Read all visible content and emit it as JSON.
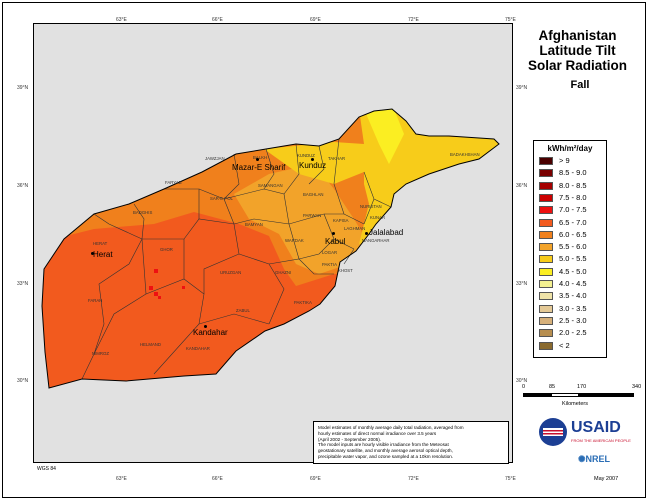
{
  "title_lines": [
    "Afghanistan",
    "Latitude Tilt",
    "Solar Radiation"
  ],
  "season": "Fall",
  "graticule": {
    "top_longitudes": [
      "63°E",
      "66°E",
      "69°E",
      "72°E",
      "75°E"
    ],
    "bottom_longitudes": [
      "63°E",
      "66°E",
      "69°E",
      "72°E",
      "75°E"
    ],
    "left_latitudes": [
      "39°N",
      "36°N",
      "33°N",
      "30°N"
    ],
    "right_latitudes": [
      "39°N",
      "36°N",
      "33°N",
      "30°N"
    ]
  },
  "legend": {
    "title": "kWh/m²/day",
    "items": [
      {
        "label": "> 9",
        "color": "#4a0000"
      },
      {
        "label": "8.5 - 9.0",
        "color": "#7a0000"
      },
      {
        "label": "8.0 - 8.5",
        "color": "#a50000"
      },
      {
        "label": "7.5 - 8.0",
        "color": "#cc0000"
      },
      {
        "label": "7.0 - 7.5",
        "color": "#ee1111"
      },
      {
        "label": "6.5 - 7.0",
        "color": "#f25a1e"
      },
      {
        "label": "6.0 - 6.5",
        "color": "#f0801c"
      },
      {
        "label": "5.5 - 6.0",
        "color": "#f2a32a"
      },
      {
        "label": "5.0 - 5.5",
        "color": "#f7cc1a"
      },
      {
        "label": "4.5 - 5.0",
        "color": "#fbee22"
      },
      {
        "label": "4.0 - 4.5",
        "color": "#f3f090"
      },
      {
        "label": "3.5 - 4.0",
        "color": "#efe3a8"
      },
      {
        "label": "3.0 - 3.5",
        "color": "#e4c996"
      },
      {
        "label": "2.5 - 3.0",
        "color": "#d6b07a"
      },
      {
        "label": "2.0 - 2.5",
        "color": "#b78e4f"
      },
      {
        "label": "< 2",
        "color": "#8a6a2e"
      }
    ]
  },
  "scale_bar": {
    "labels": [
      "0",
      "85",
      "170",
      "340"
    ],
    "units": "Kilometers"
  },
  "description_lines": [
    "Model estimates of monthly average daily total radiation, averaged from",
    "hourly estimates of direct normal irradiance over 3.5 years",
    "(April 2002 - September 2005).",
    "The model inputs are hourly visible irradiance from the Meteosat",
    "geostationary satellite, and monthly average aerosol optical depth,",
    "precipitable water vapor, and ozone sampled at a 10km resolution."
  ],
  "datum": "WGS 84",
  "logos": {
    "usaid": "USAID",
    "usaid_tagline": "FROM THE AMERICAN PEOPLE",
    "nrel": "NREL"
  },
  "date": "May 2007",
  "cities": [
    {
      "key": "mazar",
      "label": "Mazar-E Sharif"
    },
    {
      "key": "kunduz",
      "label": "Kunduz"
    },
    {
      "key": "herat",
      "label": "Herat"
    },
    {
      "key": "kabul",
      "label": "Kabul"
    },
    {
      "key": "jalalabad",
      "label": "Jalalabad"
    },
    {
      "key": "kandahar",
      "label": "Kandahar"
    }
  ],
  "provinces": [
    "JAWZJAN",
    "BALKH",
    "KUNDUZ",
    "TAKHAR",
    "BADAKHSHAN",
    "FARYAB",
    "SAMANGAN",
    "BAGHLAN",
    "SAR-E POL",
    "BADGHIS",
    "NURISTAN",
    "KUNAR",
    "PARWAN",
    "KAPISA",
    "BAMYAN",
    "HERAT",
    "GHOR",
    "WARDAK",
    "LAGHMAN",
    "NANGARHAR",
    "LOGAR",
    "URUZGAN",
    "GHAZNI",
    "PAKTIA",
    "KHOST",
    "FARAH",
    "ZABUL",
    "PAKTIKA",
    "HELMAND",
    "NIMROZ",
    "KANDAHAR"
  ]
}
